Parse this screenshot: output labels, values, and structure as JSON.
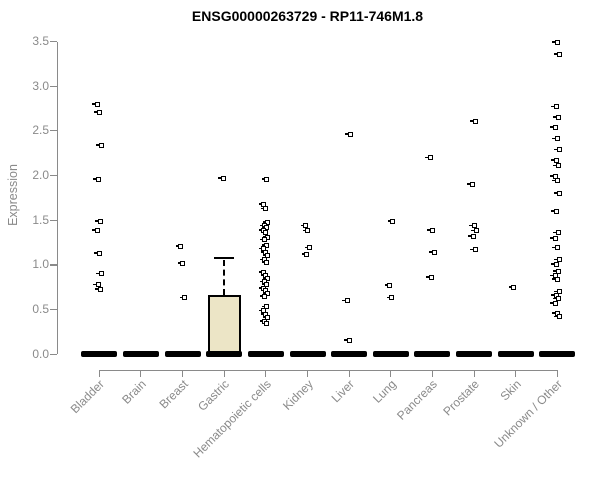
{
  "chart_data": {
    "type": "box",
    "title": "ENSG00000263729 - RP11-746M1.8",
    "ylabel": "Expression",
    "xlabel": "",
    "ylim": [
      0.0,
      3.5
    ],
    "yticks": [
      0.0,
      0.5,
      1.0,
      1.5,
      2.0,
      2.5,
      3.0,
      3.5
    ],
    "grid": false,
    "legend": "none",
    "colors": {
      "box_fill": "#ece5c6",
      "box_stroke": "#000000",
      "marker": "#000000",
      "axis": "#8a8a8a",
      "tick_text": "#8a8a8a",
      "title_text": "#000000"
    },
    "categories": [
      "Bladder",
      "Brain",
      "Breast",
      "Gastric",
      "Hematopoietic cells",
      "Kidney",
      "Liver",
      "Lung",
      "Pancreas",
      "Prostate",
      "Skin",
      "Unknown / Other"
    ],
    "series": [
      {
        "category": "Bladder",
        "q1": 0,
        "median": 0,
        "q3": 0,
        "whisker_low": 0,
        "whisker_high": 0,
        "outliers": [
          2.8,
          2.71,
          2.34,
          1.96,
          1.49,
          1.39,
          1.13,
          0.9,
          0.78,
          0.73
        ]
      },
      {
        "category": "Brain",
        "q1": 0,
        "median": 0,
        "q3": 0,
        "whisker_low": 0,
        "whisker_high": 0,
        "outliers": []
      },
      {
        "category": "Breast",
        "q1": 0,
        "median": 0,
        "q3": 0,
        "whisker_low": 0,
        "whisker_high": 0,
        "outliers": [
          1.21,
          1.02,
          0.63
        ]
      },
      {
        "category": "Gastric",
        "q1": 0,
        "median": 0,
        "q3": 0.66,
        "whisker_low": 0,
        "whisker_high": 1.08,
        "outliers": [
          1.97
        ]
      },
      {
        "category": "Hematopoietic cells",
        "q1": 0,
        "median": 0,
        "q3": 0,
        "whisker_low": 0,
        "whisker_high": 0,
        "outliers": [
          1.96,
          1.68,
          1.63,
          1.48,
          1.44,
          1.42,
          1.39,
          1.36,
          1.31,
          1.28,
          1.22,
          1.18,
          1.14,
          1.1,
          1.06,
          1.03,
          0.92,
          0.88,
          0.85,
          0.81,
          0.78,
          0.74,
          0.71,
          0.68,
          0.65,
          0.53,
          0.49,
          0.45,
          0.41,
          0.37,
          0.34
        ]
      },
      {
        "category": "Kidney",
        "q1": 0,
        "median": 0,
        "q3": 0,
        "whisker_low": 0,
        "whisker_high": 0,
        "outliers": [
          1.44,
          1.38,
          1.19,
          1.12
        ]
      },
      {
        "category": "Liver",
        "q1": 0,
        "median": 0,
        "q3": 0,
        "whisker_low": 0,
        "whisker_high": 0,
        "outliers": [
          2.46,
          0.6,
          0.16
        ]
      },
      {
        "category": "Lung",
        "q1": 0,
        "median": 0,
        "q3": 0,
        "whisker_low": 0,
        "whisker_high": 0,
        "outliers": [
          1.49,
          0.77,
          0.63
        ]
      },
      {
        "category": "Pancreas",
        "q1": 0,
        "median": 0,
        "q3": 0,
        "whisker_low": 0,
        "whisker_high": 0,
        "outliers": [
          2.2,
          1.39,
          1.14,
          0.86
        ]
      },
      {
        "category": "Prostate",
        "q1": 0,
        "median": 0,
        "q3": 0,
        "whisker_low": 0,
        "whisker_high": 0,
        "outliers": [
          2.61,
          1.9,
          1.44,
          1.38,
          1.32,
          1.17
        ]
      },
      {
        "category": "Skin",
        "q1": 0,
        "median": 0,
        "q3": 0,
        "whisker_low": 0,
        "whisker_high": 0,
        "outliers": [
          0.75
        ]
      },
      {
        "category": "Unknown / Other",
        "q1": 0,
        "median": 0,
        "q3": 0,
        "whisker_low": 0,
        "whisker_high": 0,
        "outliers": [
          3.49,
          3.36,
          2.77,
          2.65,
          2.54,
          2.41,
          2.29,
          2.17,
          2.11,
          1.99,
          1.94,
          1.8,
          1.6,
          1.36,
          1.3,
          1.19,
          1.06,
          1.01,
          0.93,
          0.88,
          0.84,
          0.7,
          0.66,
          0.62,
          0.57,
          0.46,
          0.42
        ]
      }
    ]
  }
}
